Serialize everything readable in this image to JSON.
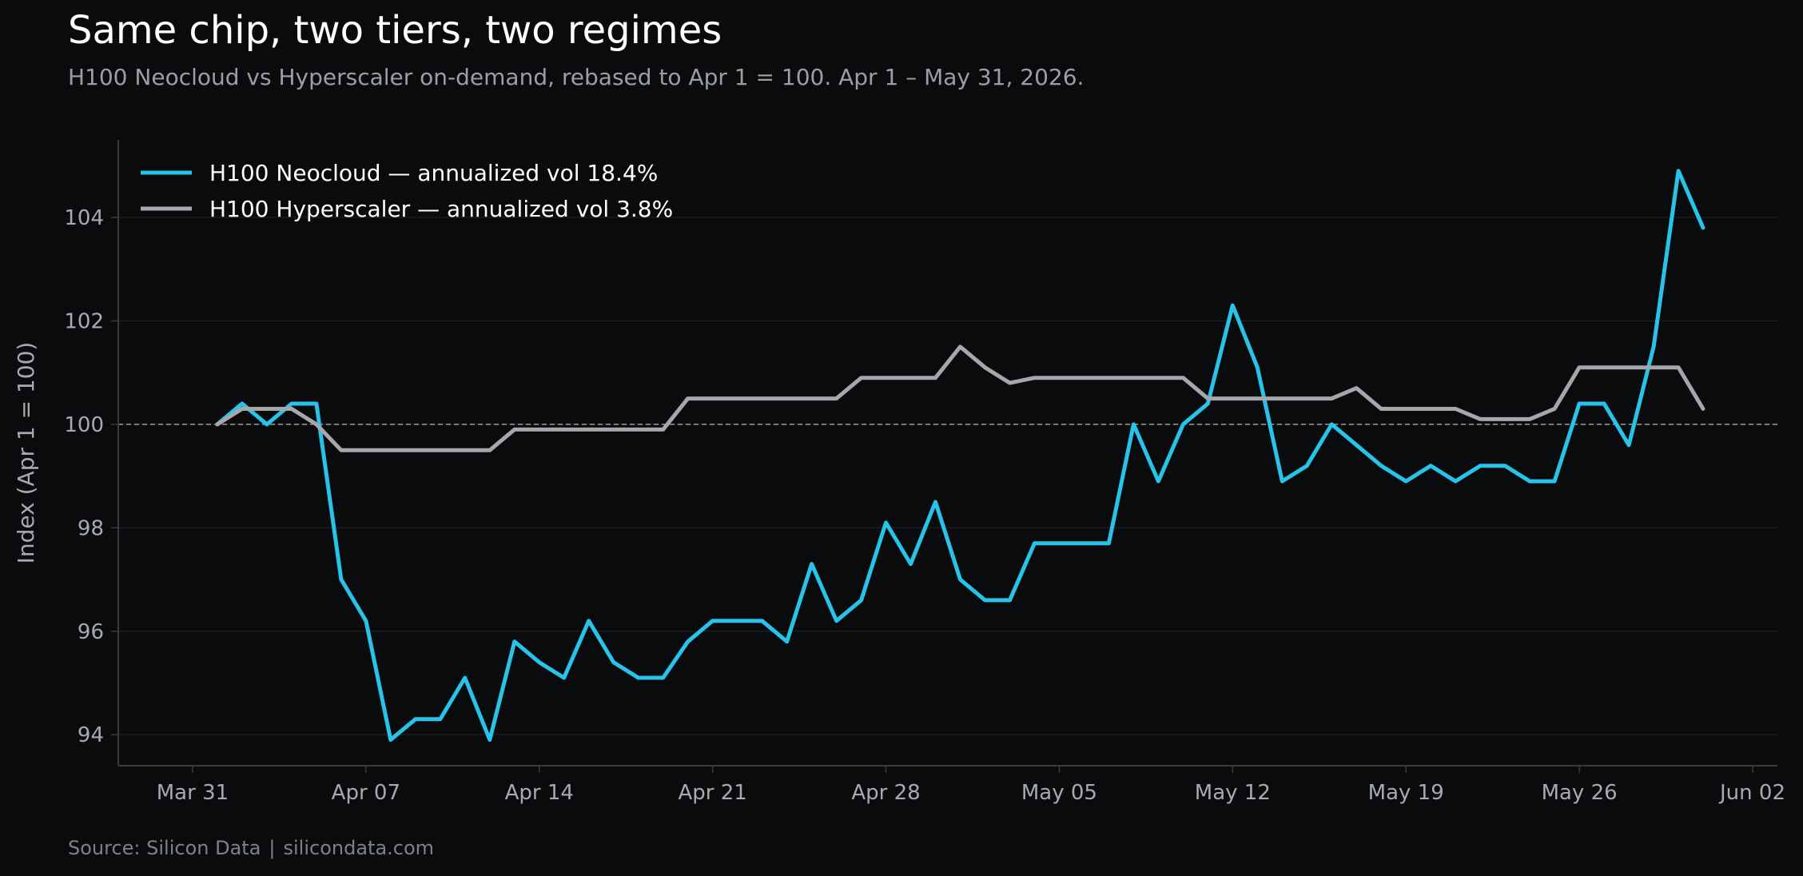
{
  "header": {
    "title": "Same chip, two tiers, two regimes",
    "subtitle": "H100 Neocloud vs Hyperscaler on-demand, rebased to Apr 1 = 100. Apr 1 – May 31, 2026."
  },
  "footer": {
    "source": "Source: Silicon Data",
    "separator": "|",
    "site": "silicondata.com"
  },
  "colors": {
    "background": "#0a0b0d",
    "neocloud": "#27c3e8",
    "hyperscaler": "#a6a6ab",
    "grid": "#1b1c1f",
    "reference": "#9a9a9a",
    "axis": "#3a3b3e"
  },
  "chart_data": {
    "type": "line",
    "xlabel": "",
    "ylabel": "Index (Apr 1 = 100)",
    "x_start": "2026-04-01",
    "x_end": "2026-05-31",
    "xlim": [
      "2026-03-28",
      "2026-06-03"
    ],
    "ylim": [
      93.4,
      105.5
    ],
    "x_ticks": [
      {
        "date": "2026-03-31",
        "label": "Mar 31"
      },
      {
        "date": "2026-04-07",
        "label": "Apr 07"
      },
      {
        "date": "2026-04-14",
        "label": "Apr 14"
      },
      {
        "date": "2026-04-21",
        "label": "Apr 21"
      },
      {
        "date": "2026-04-28",
        "label": "Apr 28"
      },
      {
        "date": "2026-05-05",
        "label": "May 05"
      },
      {
        "date": "2026-05-12",
        "label": "May 12"
      },
      {
        "date": "2026-05-19",
        "label": "May 19"
      },
      {
        "date": "2026-05-26",
        "label": "May 26"
      },
      {
        "date": "2026-06-02",
        "label": "Jun 02"
      }
    ],
    "y_ticks": [
      94,
      96,
      98,
      100,
      102,
      104
    ],
    "reference_line": 100,
    "grid": true,
    "legend_position": "top-left",
    "series": [
      {
        "name": "H100 Neocloud — annualized vol 18.4%",
        "color": "#27c3e8",
        "values": [
          100.0,
          100.4,
          100.0,
          100.4,
          100.4,
          97.0,
          96.2,
          93.9,
          94.3,
          94.3,
          95.1,
          93.9,
          95.8,
          95.4,
          95.1,
          96.2,
          95.4,
          95.1,
          95.1,
          95.8,
          96.2,
          96.2,
          96.2,
          95.8,
          97.3,
          96.2,
          96.6,
          98.1,
          97.3,
          98.5,
          97.0,
          96.6,
          96.6,
          97.7,
          97.7,
          97.7,
          97.7,
          100.0,
          98.9,
          100.0,
          100.4,
          102.3,
          101.1,
          98.9,
          99.2,
          100.0,
          99.6,
          99.2,
          98.9,
          99.2,
          98.9,
          99.2,
          99.2,
          98.9,
          98.9,
          100.4,
          100.4,
          99.6,
          101.5,
          104.9,
          103.8
        ]
      },
      {
        "name": "H100 Hyperscaler — annualized vol 3.8%",
        "color": "#a6a6ab",
        "values": [
          100.0,
          100.3,
          100.3,
          100.3,
          100.0,
          99.5,
          99.5,
          99.5,
          99.5,
          99.5,
          99.5,
          99.5,
          99.9,
          99.9,
          99.9,
          99.9,
          99.9,
          99.9,
          99.9,
          100.5,
          100.5,
          100.5,
          100.5,
          100.5,
          100.5,
          100.5,
          100.9,
          100.9,
          100.9,
          100.9,
          101.5,
          101.1,
          100.8,
          100.9,
          100.9,
          100.9,
          100.9,
          100.9,
          100.9,
          100.9,
          100.5,
          100.5,
          100.5,
          100.5,
          100.5,
          100.5,
          100.7,
          100.3,
          100.3,
          100.3,
          100.3,
          100.1,
          100.1,
          100.1,
          100.3,
          101.1,
          101.1,
          101.1,
          101.1,
          101.1,
          100.3
        ]
      }
    ]
  }
}
